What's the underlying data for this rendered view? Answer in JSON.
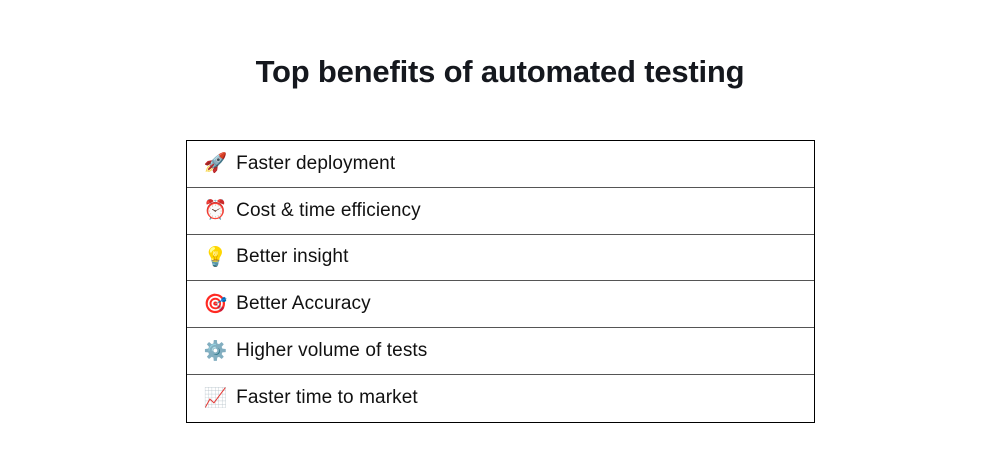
{
  "page": {
    "title": "Top benefits of automated testing"
  },
  "benefits": {
    "rows": [
      {
        "icon": "rocket-icon",
        "emoji": "🚀",
        "label": "Faster deployment"
      },
      {
        "icon": "alarm-clock-icon",
        "emoji": "⏰",
        "label": "Cost & time efficiency"
      },
      {
        "icon": "light-bulb-icon",
        "emoji": "💡",
        "label": "Better insight"
      },
      {
        "icon": "dart-target-icon",
        "emoji": "🎯",
        "label": "Better Accuracy"
      },
      {
        "icon": "gear-icon",
        "emoji": "⚙️",
        "label": "Higher volume of tests"
      },
      {
        "icon": "chart-increasing-icon",
        "emoji": "📈",
        "label": "Faster time to market"
      }
    ]
  },
  "colors": {
    "background": "#ffffff",
    "title_text": "#15181e",
    "row_text": "#111111",
    "outer_border": "#000000",
    "row_divider": "#555555"
  }
}
